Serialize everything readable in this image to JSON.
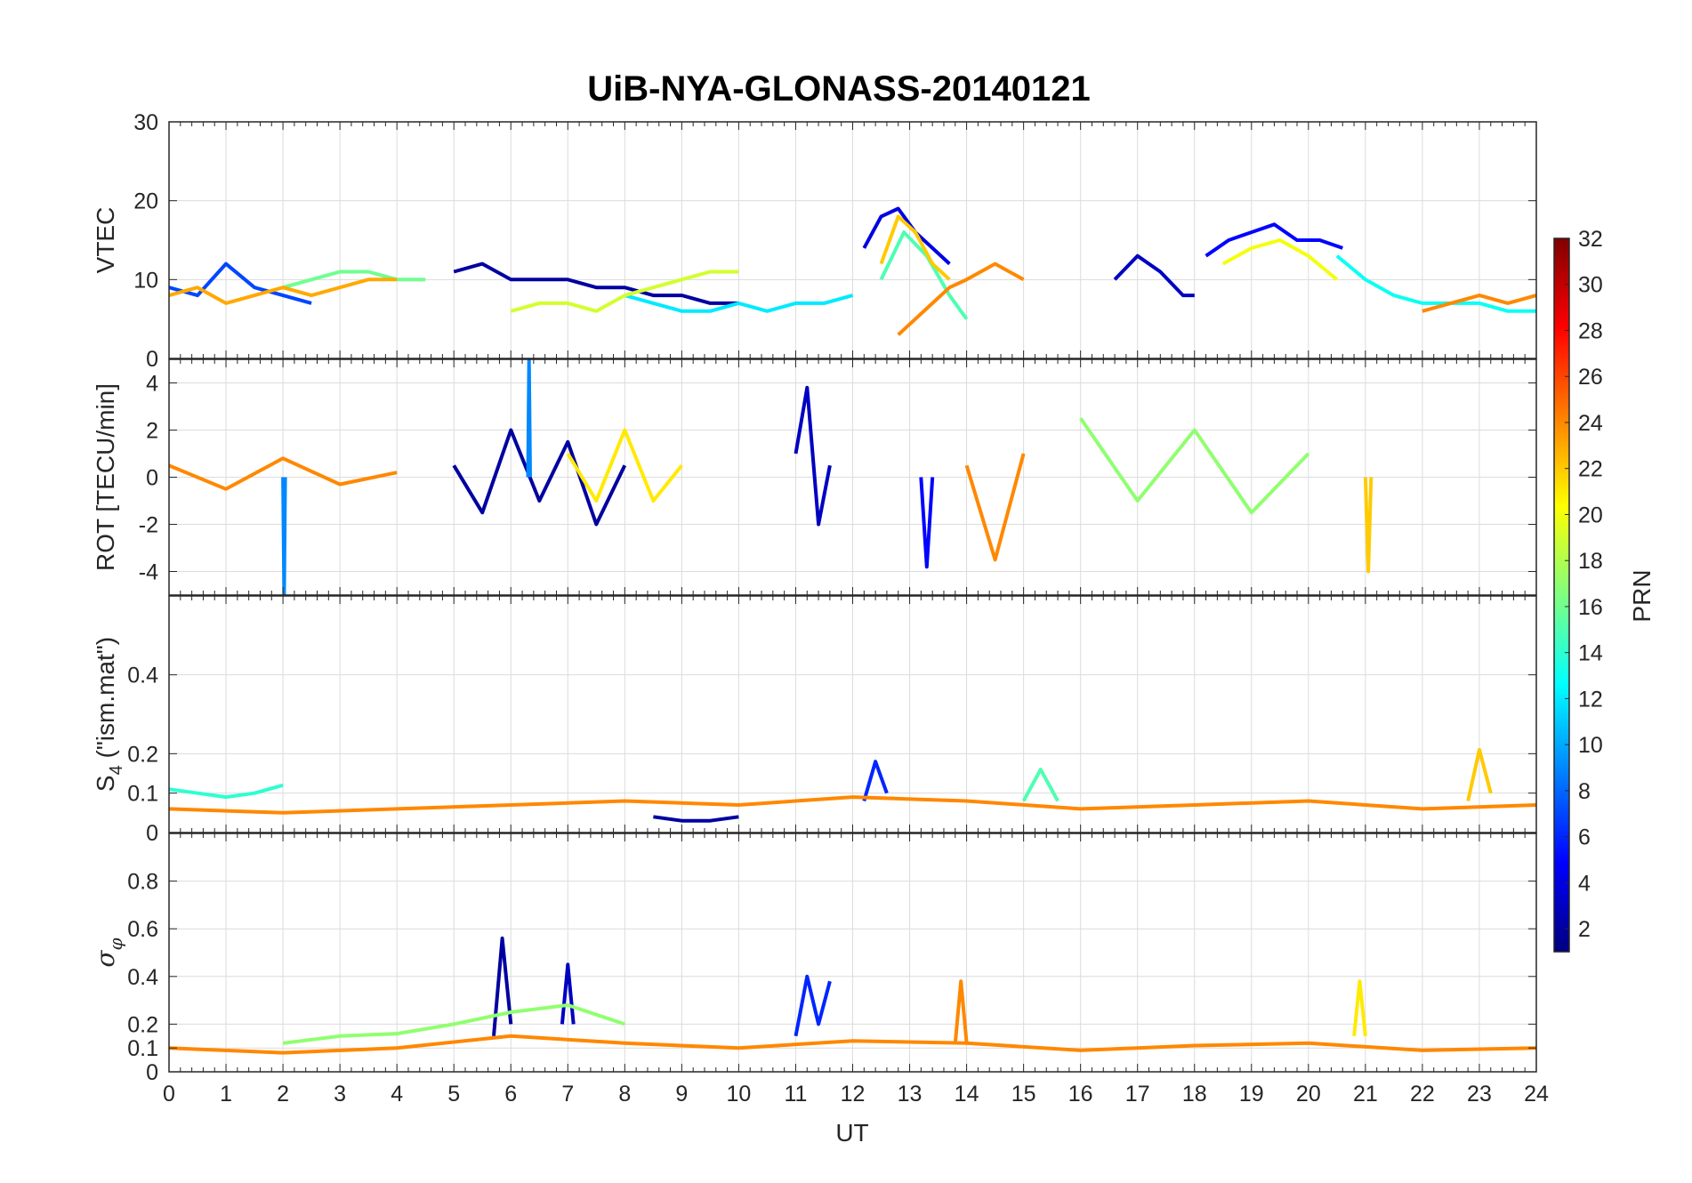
{
  "chart_data": {
    "type": "line",
    "title": "UiB-NYA-GLONASS-20140121",
    "xlabel": "UT",
    "xlim": [
      0,
      24
    ],
    "xticks": [
      "0",
      "1",
      "2",
      "3",
      "4",
      "5",
      "6",
      "7",
      "8",
      "9",
      "10",
      "11",
      "12",
      "13",
      "14",
      "15",
      "16",
      "17",
      "18",
      "19",
      "20",
      "21",
      "22",
      "23",
      "24"
    ],
    "panels": [
      {
        "ylabel": "VTEC",
        "ylim": [
          0,
          30
        ],
        "yticks": [
          0,
          10,
          20,
          30
        ],
        "ytick_labels": [
          "0",
          "10",
          "20",
          "30"
        ],
        "series": [
          {
            "prn": 2,
            "x": [
              5.0,
              5.5,
              6.0,
              6.5,
              7.0,
              7.5,
              8.0,
              8.5,
              9.0,
              9.5,
              10.0
            ],
            "y": [
              11,
              12,
              10,
              10,
              10,
              9,
              9,
              8,
              8,
              7,
              7
            ]
          },
          {
            "prn": 4,
            "x": [
              12.2,
              12.5,
              12.8,
              13.1,
              13.4,
              13.7
            ],
            "y": [
              14,
              18,
              19,
              16,
              14,
              12
            ]
          },
          {
            "prn": 3,
            "x": [
              16.6,
              17.0,
              17.4,
              17.8,
              18.0
            ],
            "y": [
              10,
              13,
              11,
              8,
              8
            ]
          },
          {
            "prn": 5,
            "x": [
              18.2,
              18.6,
              19.0,
              19.4,
              19.8,
              20.2,
              20.6
            ],
            "y": [
              13,
              15,
              16,
              17,
              15,
              15,
              14
            ]
          },
          {
            "prn": 7,
            "x": [
              0.0,
              0.5,
              1.0,
              1.5,
              2.0,
              2.5
            ],
            "y": [
              9,
              8,
              12,
              9,
              8,
              7
            ]
          },
          {
            "prn": 12,
            "x": [
              8.0,
              8.5,
              9.0,
              9.5,
              10.0,
              10.5,
              11.0,
              11.5,
              12.0
            ],
            "y": [
              8,
              7,
              6,
              6,
              7,
              6,
              7,
              7,
              8
            ]
          },
          {
            "prn": 13,
            "x": [
              20.5,
              21.0,
              21.5,
              22.0,
              22.5,
              23.0,
              23.5,
              24.0
            ],
            "y": [
              13,
              10,
              8,
              7,
              7,
              7,
              6,
              6
            ]
          },
          {
            "prn": 15,
            "x": [
              12.5,
              12.9,
              13.3,
              13.7,
              14.0
            ],
            "y": [
              10,
              16,
              13,
              8,
              5
            ]
          },
          {
            "prn": 16,
            "x": [
              2.0,
              2.5,
              3.0,
              3.5,
              4.0,
              4.5
            ],
            "y": [
              9,
              10,
              11,
              11,
              10,
              10
            ]
          },
          {
            "prn": 19,
            "x": [
              6.0,
              6.5,
              7.0,
              7.5,
              8.0,
              8.5,
              9.0,
              9.5,
              10.0
            ],
            "y": [
              6,
              7,
              7,
              6,
              8,
              9,
              10,
              11,
              11
            ]
          },
          {
            "prn": 20,
            "x": [
              18.5,
              19.0,
              19.5,
              20.0,
              20.5
            ],
            "y": [
              12,
              14,
              15,
              13,
              10
            ]
          },
          {
            "prn": 23,
            "x": [
              0.0,
              0.5,
              1.0,
              1.5,
              2.0,
              2.5,
              3.0,
              3.5,
              4.0
            ],
            "y": [
              8,
              9,
              7,
              8,
              9,
              8,
              9,
              10,
              10
            ]
          },
          {
            "prn": 22,
            "x": [
              12.5,
              12.8,
              13.1,
              13.4,
              13.7
            ],
            "y": [
              12,
              18,
              16,
              12,
              10
            ]
          },
          {
            "prn": 24,
            "x": [
              12.8,
              13.1,
              13.4,
              13.7,
              14.0,
              14.5,
              15.0
            ],
            "y": [
              3,
              5,
              7,
              9,
              10,
              12,
              10
            ]
          },
          {
            "prn": 24,
            "x": [
              22.0,
              22.5,
              23.0,
              23.5,
              24.0
            ],
            "y": [
              6,
              7,
              8,
              7,
              8
            ]
          }
        ]
      },
      {
        "ylabel": "ROT [TECU/min]",
        "ylim": [
          -5,
          5
        ],
        "yticks": [
          -4,
          -2,
          0,
          2,
          4
        ],
        "ytick_labels": [
          "-4",
          "-2",
          "0",
          "2",
          "4"
        ],
        "series": [
          {
            "prn": 2,
            "x": [
              5.0,
              5.5,
              6.0,
              6.5,
              7.0,
              7.5,
              8.0
            ],
            "y": [
              0.5,
              -1.5,
              2.0,
              -1.0,
              1.5,
              -2.0,
              0.5
            ]
          },
          {
            "prn": 9,
            "x": [
              2.0,
              2.02,
              2.04
            ],
            "y": [
              0.0,
              -5.0,
              0.0
            ]
          },
          {
            "prn": 9,
            "x": [
              6.3,
              6.32,
              6.34
            ],
            "y": [
              0.0,
              5.0,
              0.0
            ]
          },
          {
            "prn": 3,
            "x": [
              11.0,
              11.2,
              11.4,
              11.6
            ],
            "y": [
              1.0,
              3.8,
              -2.0,
              0.5
            ]
          },
          {
            "prn": 5,
            "x": [
              13.2,
              13.3,
              13.4
            ],
            "y": [
              0.0,
              -3.8,
              0.0
            ]
          },
          {
            "prn": 21,
            "x": [
              7.0,
              7.5,
              8.0,
              8.5,
              9.0
            ],
            "y": [
              1.0,
              -1.0,
              2.0,
              -1.0,
              0.5
            ]
          },
          {
            "prn": 24,
            "x": [
              0.0,
              1.0,
              2.0,
              3.0,
              4.0
            ],
            "y": [
              0.5,
              -0.5,
              0.8,
              -0.3,
              0.2
            ]
          },
          {
            "prn": 24,
            "x": [
              14.0,
              14.5,
              15.0
            ],
            "y": [
              0.5,
              -3.5,
              1.0
            ]
          },
          {
            "prn": 22,
            "x": [
              21.0,
              21.05,
              21.1
            ],
            "y": [
              0.0,
              -4.0,
              0.0
            ]
          },
          {
            "prn": 17,
            "x": [
              16.0,
              17.0,
              18.0,
              19.0,
              20.0
            ],
            "y": [
              2.5,
              -1.0,
              2.0,
              -1.5,
              1.0
            ]
          }
        ]
      },
      {
        "ylabel": "S4 (\"ism.mat\")",
        "ylim": [
          0,
          0.6
        ],
        "yticks": [
          0,
          0.1,
          0.2,
          0.4
        ],
        "ytick_labels": [
          "0",
          "0.1",
          "0.2",
          "0.4"
        ],
        "series": [
          {
            "prn": 2,
            "x": [
              8.5,
              9.0,
              9.5,
              10.0
            ],
            "y": [
              0.04,
              0.03,
              0.03,
              0.04
            ]
          },
          {
            "prn": 6,
            "x": [
              12.2,
              12.4,
              12.6
            ],
            "y": [
              0.08,
              0.18,
              0.1
            ]
          },
          {
            "prn": 14,
            "x": [
              0.0,
              0.5,
              1.0,
              1.5,
              2.0
            ],
            "y": [
              0.11,
              0.1,
              0.09,
              0.1,
              0.12
            ]
          },
          {
            "prn": 15,
            "x": [
              15.0,
              15.3,
              15.6
            ],
            "y": [
              0.08,
              0.16,
              0.08
            ]
          },
          {
            "prn": 22,
            "x": [
              22.8,
              23.0,
              23.2
            ],
            "y": [
              0.08,
              0.21,
              0.1
            ]
          },
          {
            "prn": 24,
            "x": [
              0.0,
              2.0,
              4.0,
              6.0,
              8.0,
              10.0,
              12.0,
              14.0,
              16.0,
              18.0,
              20.0,
              22.0,
              24.0
            ],
            "y": [
              0.06,
              0.05,
              0.06,
              0.07,
              0.08,
              0.07,
              0.09,
              0.08,
              0.06,
              0.07,
              0.08,
              0.06,
              0.07
            ]
          }
        ]
      },
      {
        "ylabel": "σφ",
        "ylim": [
          0,
          1
        ],
        "yticks": [
          0,
          0.1,
          0.2,
          0.4,
          0.6,
          0.8
        ],
        "ytick_labels": [
          "0",
          "0.1",
          "0.2",
          "0.4",
          "0.6",
          "0.8"
        ],
        "series": [
          {
            "prn": 2,
            "x": [
              5.7,
              5.85,
              6.0
            ],
            "y": [
              0.15,
              0.56,
              0.2
            ]
          },
          {
            "prn": 3,
            "x": [
              6.9,
              7.0,
              7.1
            ],
            "y": [
              0.2,
              0.45,
              0.2
            ]
          },
          {
            "prn": 6,
            "x": [
              11.0,
              11.2,
              11.4,
              11.6
            ],
            "y": [
              0.15,
              0.4,
              0.2,
              0.38
            ]
          },
          {
            "prn": 24,
            "x": [
              13.8,
              13.9,
              14.0
            ],
            "y": [
              0.12,
              0.38,
              0.12
            ]
          },
          {
            "prn": 21,
            "x": [
              20.8,
              20.9,
              21.0
            ],
            "y": [
              0.15,
              0.38,
              0.15
            ]
          },
          {
            "prn": 24,
            "x": [
              0.0,
              2.0,
              4.0,
              6.0,
              8.0,
              10.0,
              12.0,
              14.0,
              16.0,
              18.0,
              20.0,
              22.0,
              24.0
            ],
            "y": [
              0.1,
              0.08,
              0.1,
              0.15,
              0.12,
              0.1,
              0.13,
              0.12,
              0.09,
              0.11,
              0.12,
              0.09,
              0.1
            ]
          },
          {
            "prn": 17,
            "x": [
              2.0,
              3.0,
              4.0,
              5.0,
              6.0,
              7.0,
              8.0
            ],
            "y": [
              0.12,
              0.15,
              0.16,
              0.2,
              0.25,
              0.28,
              0.2
            ]
          }
        ]
      }
    ],
    "colorbar": {
      "label": "PRN",
      "limits": [
        1,
        32
      ],
      "ticks": [
        2,
        4,
        6,
        8,
        10,
        12,
        14,
        16,
        18,
        20,
        22,
        24,
        26,
        28,
        30,
        32
      ],
      "tick_labels": [
        "2",
        "4",
        "6",
        "8",
        "10",
        "12",
        "14",
        "16",
        "18",
        "20",
        "22",
        "24",
        "26",
        "28",
        "30",
        "32"
      ],
      "colormap": "jet"
    },
    "grid": true
  }
}
